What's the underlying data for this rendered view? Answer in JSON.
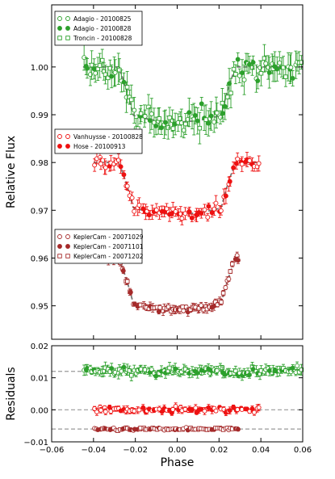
{
  "chart_data": [
    {
      "type": "scatter",
      "panel": "top",
      "ylabel": "Relative Flux",
      "xlim": [
        -0.06,
        0.06
      ],
      "ylim": [
        0.943,
        1.013
      ],
      "yticks": [
        "1.00",
        "0.99",
        "0.98",
        "0.97",
        "0.96",
        "0.95"
      ],
      "ytick_values": [
        1.0,
        0.99,
        0.98,
        0.97,
        0.96,
        0.95
      ],
      "xticks": [],
      "legends": [
        {
          "location": "top-left",
          "entries": [
            {
              "label": "Adagio - 20100825",
              "color": "#2ca02c",
              "marker": "open-circle"
            },
            {
              "label": "Adagio - 20100828",
              "color": "#2ca02c",
              "marker": "filled-circle"
            },
            {
              "label": "Troncin - 20100828",
              "color": "#2ca02c",
              "marker": "open-square"
            }
          ]
        },
        {
          "location": "middle-left",
          "entries": [
            {
              "label": "Vanhuysse - 20100828",
              "color": "#ee1111",
              "marker": "open-circle"
            },
            {
              "label": "Hose - 20100913",
              "color": "#ee1111",
              "marker": "filled-circle"
            }
          ]
        },
        {
          "location": "lower-left",
          "entries": [
            {
              "label": "KeplerCam - 20071029",
              "color": "#a52a2a",
              "marker": "open-circle"
            },
            {
              "label": "KeplerCam - 20071101",
              "color": "#a52a2a",
              "marker": "filled-circle"
            },
            {
              "label": "KeplerCam - 20071202",
              "color": "#a52a2a",
              "marker": "open-square"
            }
          ]
        }
      ],
      "transits": [
        {
          "name": "green",
          "color": "#2ca02c",
          "baseline": 1.0,
          "depth": 0.0115,
          "x_range": [
            -0.045,
            0.06
          ]
        },
        {
          "name": "red",
          "color": "#ee1111",
          "baseline": 0.98,
          "depth": 0.0108,
          "x_range": [
            -0.04,
            0.04
          ]
        },
        {
          "name": "brown",
          "color": "#a52a2a",
          "baseline": 0.96,
          "depth": 0.0108,
          "x_range": [
            -0.04,
            0.03
          ]
        }
      ],
      "model_line": {
        "color": "#777777",
        "style": "dashed",
        "first_contact": 0.028,
        "second_contact": 0.021
      }
    },
    {
      "type": "scatter",
      "panel": "bottom",
      "ylabel": "Residuals",
      "xlabel": "Phase",
      "xlim": [
        -0.06,
        0.06
      ],
      "ylim": [
        -0.01,
        0.02
      ],
      "yticks": [
        "0.02",
        "0.01",
        "0.00",
        "−0.01"
      ],
      "ytick_values": [
        0.02,
        0.01,
        0.0,
        -0.01
      ],
      "xticks": [
        "−0.06",
        "−0.04",
        "−0.02",
        "0.00",
        "0.02",
        "0.04",
        "0.06"
      ],
      "xtick_values": [
        -0.06,
        -0.04,
        -0.02,
        0.0,
        0.02,
        0.04,
        0.06
      ],
      "offsets": [
        {
          "name": "green",
          "color": "#2ca02c",
          "y": 0.012,
          "x_range": [
            -0.045,
            0.06
          ]
        },
        {
          "name": "red",
          "color": "#ee1111",
          "y": 0.0,
          "x_range": [
            -0.04,
            0.04
          ]
        },
        {
          "name": "brown",
          "color": "#a52a2a",
          "y": -0.006,
          "x_range": [
            -0.04,
            0.03
          ]
        }
      ]
    }
  ]
}
